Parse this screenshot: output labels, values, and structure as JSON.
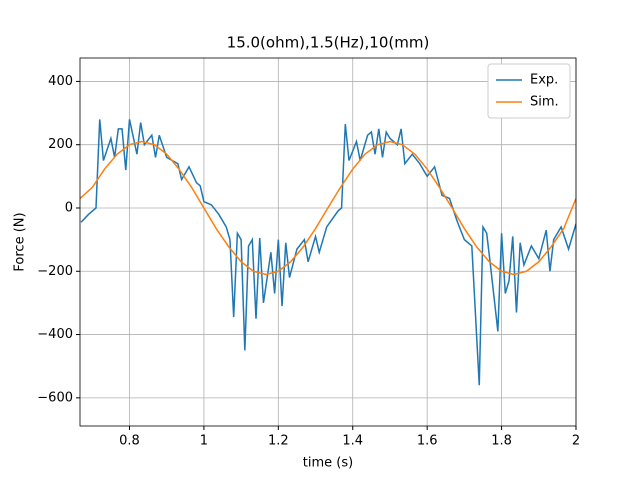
{
  "chart_data": {
    "type": "line",
    "title": "15.0(ohm),1.5(Hz),10(mm)",
    "xlabel": "time (s)",
    "ylabel": "Force (N)",
    "xlim": [
      0.667,
      2.0
    ],
    "ylim": [
      -689,
      474
    ],
    "xticks": [
      0.8,
      1.0,
      1.2,
      1.4,
      1.6,
      1.8,
      2.0
    ],
    "yticks": [
      {
        "value": -600,
        "label": "−600"
      },
      {
        "value": -400,
        "label": "−400"
      },
      {
        "value": -200,
        "label": "−200"
      },
      0,
      200,
      400
    ],
    "grid": true,
    "legend": "upper right",
    "series": [
      {
        "name": "Exp.",
        "color": "#1f77b4",
        "x": [
          0.67,
          0.69,
          0.71,
          0.72,
          0.73,
          0.75,
          0.76,
          0.77,
          0.78,
          0.79,
          0.8,
          0.82,
          0.83,
          0.84,
          0.86,
          0.87,
          0.88,
          0.9,
          0.93,
          0.94,
          0.96,
          0.98,
          0.99,
          1.0,
          1.02,
          1.04,
          1.06,
          1.07,
          1.08,
          1.09,
          1.1,
          1.11,
          1.12,
          1.13,
          1.14,
          1.15,
          1.16,
          1.18,
          1.19,
          1.2,
          1.21,
          1.22,
          1.23,
          1.25,
          1.27,
          1.28,
          1.3,
          1.31,
          1.33,
          1.36,
          1.37,
          1.38,
          1.39,
          1.41,
          1.42,
          1.44,
          1.45,
          1.46,
          1.47,
          1.48,
          1.49,
          1.5,
          1.52,
          1.53,
          1.54,
          1.56,
          1.58,
          1.6,
          1.62,
          1.64,
          1.66,
          1.68,
          1.7,
          1.72,
          1.74,
          1.75,
          1.76,
          1.77,
          1.79,
          1.8,
          1.81,
          1.82,
          1.83,
          1.84,
          1.85,
          1.86,
          1.88,
          1.9,
          1.92,
          1.93,
          1.94,
          1.96,
          1.98,
          2.0
        ],
        "values": [
          -45,
          -20,
          0,
          280,
          150,
          220,
          160,
          250,
          250,
          120,
          280,
          170,
          270,
          200,
          230,
          160,
          230,
          160,
          140,
          90,
          130,
          80,
          70,
          20,
          10,
          -20,
          -60,
          -100,
          -345,
          -80,
          -100,
          -450,
          -120,
          -100,
          -350,
          -95,
          -300,
          -140,
          -270,
          -100,
          -310,
          -110,
          -220,
          -130,
          -100,
          -170,
          -90,
          -140,
          -60,
          -10,
          0,
          265,
          150,
          210,
          150,
          230,
          240,
          170,
          250,
          160,
          240,
          220,
          200,
          250,
          140,
          170,
          140,
          100,
          130,
          40,
          30,
          -40,
          -100,
          -120,
          -560,
          -60,
          -80,
          -180,
          -390,
          -80,
          -270,
          -230,
          -90,
          -330,
          -110,
          -180,
          -120,
          -160,
          -70,
          -200,
          -100,
          -60,
          -130,
          -50
        ]
      },
      {
        "name": "Sim.",
        "color": "#ff7f0e",
        "x": [
          0.667,
          0.7,
          0.733,
          0.767,
          0.8,
          0.833,
          0.867,
          0.9,
          0.933,
          0.967,
          1.0,
          1.033,
          1.067,
          1.1,
          1.133,
          1.167,
          1.2,
          1.233,
          1.267,
          1.3,
          1.333,
          1.367,
          1.4,
          1.433,
          1.467,
          1.5,
          1.533,
          1.567,
          1.6,
          1.633,
          1.667,
          1.7,
          1.733,
          1.767,
          1.8,
          1.833,
          1.867,
          1.9,
          1.933,
          1.967,
          2.0
        ],
        "values": [
          30,
          65,
          123,
          170,
          200,
          210,
          200,
          170,
          123,
          65,
          0,
          -65,
          -123,
          -170,
          -200,
          -210,
          -200,
          -170,
          -123,
          -65,
          0,
          65,
          123,
          170,
          200,
          210,
          200,
          170,
          123,
          65,
          0,
          -65,
          -123,
          -170,
          -200,
          -210,
          -200,
          -170,
          -123,
          -65,
          30
        ]
      }
    ]
  }
}
